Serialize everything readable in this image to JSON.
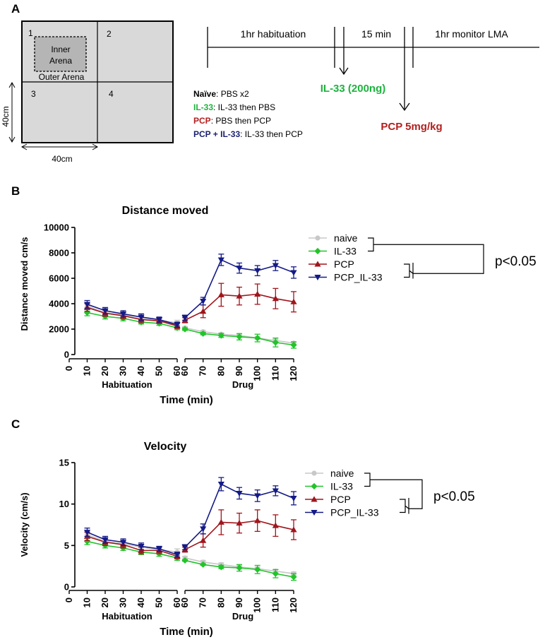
{
  "panel_a": {
    "label": "A",
    "arena": {
      "quadrants": [
        "1",
        "2",
        "3",
        "4"
      ],
      "inner_label_1": "Inner",
      "inner_label_2": "Arena",
      "outer_label": "Outer Arena",
      "width_label": "40cm",
      "height_label": "40cm"
    },
    "legend": [
      {
        "group": "Naïve",
        "rest": ": PBS x2",
        "color": "#000000"
      },
      {
        "group": "IL-33",
        "rest": ": IL-33 then PBS",
        "color": "#1db33e"
      },
      {
        "group": "PCP",
        "rest": ": PBS then PCP",
        "color": "#b3201f"
      },
      {
        "group": "PCP + IL-33",
        "rest": ": IL-33 then PCP",
        "color": "#1a1f6e"
      }
    ],
    "timeline": {
      "habituation": "1hr habituation",
      "wait": "15 min",
      "monitor": "1hr monitor LMA",
      "il33_dose": "IL-33 (200ng)",
      "pcp_dose": "PCP 5mg/kg",
      "il33_color": "#1db33e",
      "pcp_color": "#b3201f"
    }
  },
  "series_style": [
    {
      "name": "naive",
      "color": "#c8c8c8",
      "marker": "circle"
    },
    {
      "name": "IL-33",
      "color": "#22c42a",
      "marker": "diamond"
    },
    {
      "name": "PCP",
      "color": "#a0151c",
      "marker": "triangle-up"
    },
    {
      "name": "PCP_IL-33",
      "color": "#141a87",
      "marker": "triangle-down"
    }
  ],
  "significance": "p<0.05",
  "chart_data": [
    {
      "panel": "B",
      "type": "line",
      "title": "Distance moved",
      "ylabel": "Distance moved cm/s",
      "xlabel": "Time (min)",
      "segment_labels": [
        "Habituation",
        "Drug"
      ],
      "ylim": [
        0,
        10000
      ],
      "yticks": [
        0,
        2000,
        4000,
        6000,
        8000,
        10000
      ],
      "xticks_habituation": [
        0,
        10,
        20,
        30,
        40,
        50,
        60
      ],
      "xticks_drug": [
        60,
        70,
        80,
        90,
        100,
        110,
        120
      ],
      "habituation_x": [
        10,
        20,
        30,
        40,
        50,
        60
      ],
      "drug_x": [
        60,
        70,
        80,
        90,
        100,
        110,
        120
      ],
      "series": [
        {
          "name": "naive",
          "habituation": [
            3800,
            3300,
            3100,
            2800,
            2700,
            2500
          ],
          "habituation_err": [
            250,
            200,
            200,
            200,
            200,
            200
          ],
          "drug": [
            2100,
            1800,
            1600,
            1500,
            1300,
            1100,
            900
          ],
          "drug_err": [
            100,
            100,
            100,
            100,
            100,
            100,
            100
          ]
        },
        {
          "name": "IL-33",
          "habituation": [
            3300,
            3000,
            2850,
            2550,
            2450,
            2100
          ],
          "habituation_err": [
            250,
            200,
            200,
            150,
            150,
            150
          ],
          "drug": [
            2000,
            1650,
            1500,
            1400,
            1300,
            950,
            750
          ],
          "drug_err": [
            100,
            100,
            150,
            250,
            300,
            350,
            250
          ]
        },
        {
          "name": "PCP",
          "habituation": [
            3700,
            3250,
            3050,
            2750,
            2650,
            2250
          ],
          "habituation_err": [
            300,
            250,
            250,
            250,
            200,
            200
          ],
          "drug": [
            2700,
            3400,
            4700,
            4600,
            4750,
            4400,
            4150
          ],
          "drug_err": [
            200,
            500,
            900,
            700,
            800,
            800,
            800
          ]
        },
        {
          "name": "PCP_IL-33",
          "habituation": [
            3950,
            3450,
            3200,
            2950,
            2750,
            2350
          ],
          "habituation_err": [
            300,
            250,
            250,
            250,
            200,
            200
          ],
          "drug": [
            2900,
            4200,
            7450,
            6800,
            6600,
            7000,
            6450
          ],
          "drug_err": [
            200,
            300,
            450,
            400,
            400,
            400,
            450
          ]
        }
      ]
    },
    {
      "panel": "C",
      "type": "line",
      "title": "Velocity",
      "ylabel": "Velocity (cm/s)",
      "xlabel": "Time (min)",
      "segment_labels": [
        "Habituation",
        "Drug"
      ],
      "ylim": [
        0,
        15
      ],
      "yticks": [
        0,
        5,
        10,
        15
      ],
      "xticks_habituation": [
        0,
        10,
        20,
        30,
        40,
        50,
        60
      ],
      "xticks_drug": [
        60,
        70,
        80,
        90,
        100,
        110,
        120
      ],
      "habituation_x": [
        10,
        20,
        30,
        40,
        50,
        60
      ],
      "drug_x": [
        60,
        70,
        80,
        90,
        100,
        110,
        120
      ],
      "series": [
        {
          "name": "naive",
          "habituation": [
            6.3,
            5.5,
            5.2,
            4.8,
            4.5,
            4.2
          ],
          "habituation_err": [
            0.4,
            0.3,
            0.3,
            0.3,
            0.3,
            0.4
          ],
          "drug": [
            3.5,
            3.0,
            2.7,
            2.4,
            2.2,
            1.9,
            1.6
          ],
          "drug_err": [
            0.2,
            0.2,
            0.2,
            0.2,
            0.2,
            0.2,
            0.2
          ]
        },
        {
          "name": "IL-33",
          "habituation": [
            5.5,
            5.0,
            4.7,
            4.2,
            4.0,
            3.5
          ],
          "habituation_err": [
            0.4,
            0.3,
            0.3,
            0.3,
            0.3,
            0.3
          ],
          "drug": [
            3.2,
            2.7,
            2.4,
            2.3,
            2.1,
            1.6,
            1.2
          ],
          "drug_err": [
            0.1,
            0.1,
            0.2,
            0.4,
            0.5,
            0.5,
            0.4
          ]
        },
        {
          "name": "PCP",
          "habituation": [
            6.1,
            5.4,
            5.1,
            4.4,
            4.4,
            3.7
          ],
          "habituation_err": [
            0.5,
            0.4,
            0.4,
            0.4,
            0.4,
            0.3
          ],
          "drug": [
            4.5,
            5.6,
            7.8,
            7.7,
            8.0,
            7.4,
            6.9
          ],
          "drug_err": [
            0.3,
            0.8,
            1.5,
            1.2,
            1.3,
            1.3,
            1.2
          ]
        },
        {
          "name": "PCP_IL-33",
          "habituation": [
            6.6,
            5.7,
            5.4,
            4.9,
            4.6,
            3.9
          ],
          "habituation_err": [
            0.5,
            0.4,
            0.4,
            0.4,
            0.3,
            0.3
          ],
          "drug": [
            4.8,
            7.0,
            12.4,
            11.3,
            11.0,
            11.6,
            10.7
          ],
          "drug_err": [
            0.3,
            0.6,
            0.8,
            0.7,
            0.7,
            0.6,
            0.8
          ]
        }
      ]
    }
  ]
}
